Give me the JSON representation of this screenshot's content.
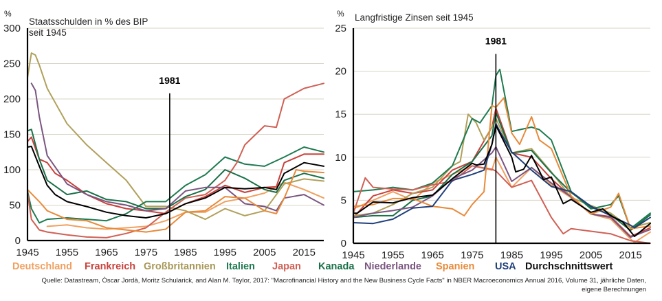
{
  "chart_data": [
    {
      "type": "line",
      "unit_label": "%",
      "title": "Staatsschulden in % des BIP",
      "subtitle": "seit 1945",
      "xlim": [
        1945,
        2020
      ],
      "ylim": [
        0,
        300
      ],
      "x_ticks": [
        "1945",
        "1955",
        "1965",
        "1975",
        "1985",
        "1995",
        "2005",
        "2015"
      ],
      "y_ticks": [
        "0",
        "50",
        "100",
        "150",
        "200",
        "250",
        "300"
      ],
      "grid": true,
      "annotation": {
        "label": "1981",
        "x": 1981,
        "y_top": 208
      },
      "series": [
        {
          "name": "Deutschland",
          "color": "#f0a060",
          "x": [
            1950,
            1955,
            1960,
            1965,
            1970,
            1975,
            1980,
            1985,
            1990,
            1995,
            2000,
            2005,
            2010,
            2015,
            2020
          ],
          "values": [
            20,
            22,
            18,
            16,
            18,
            20,
            28,
            40,
            40,
            55,
            60,
            67,
            82,
            72,
            60
          ]
        },
        {
          "name": "Frankreich",
          "color": "#c8423c",
          "x": [
            1945,
            1946,
            1948,
            1950,
            1952,
            1955,
            1960,
            1965,
            1970,
            1975,
            1980,
            1985,
            1990,
            1995,
            2000,
            2005,
            2008,
            2010,
            2015,
            2020
          ],
          "values": [
            140,
            146,
            115,
            110,
            95,
            85,
            65,
            52,
            45,
            42,
            38,
            52,
            62,
            78,
            68,
            75,
            76,
            110,
            122,
            122
          ]
        },
        {
          "name": "Großbritannien",
          "color": "#b0a05a",
          "x": [
            1945,
            1946,
            1947,
            1948,
            1950,
            1952,
            1955,
            1960,
            1965,
            1970,
            1975,
            1980,
            1985,
            1990,
            1995,
            2000,
            2005,
            2010,
            2015,
            2020
          ],
          "values": [
            230,
            265,
            262,
            248,
            215,
            195,
            165,
            135,
            110,
            85,
            48,
            48,
            42,
            30,
            45,
            35,
            42,
            80,
            87,
            84
          ]
        },
        {
          "name": "Italien",
          "color": "#1e7a50",
          "x": [
            1945,
            1946,
            1948,
            1950,
            1955,
            1960,
            1965,
            1970,
            1975,
            1980,
            1985,
            1990,
            1995,
            2000,
            2005,
            2010,
            2015,
            2020
          ],
          "values": [
            70,
            45,
            25,
            30,
            32,
            30,
            28,
            38,
            55,
            55,
            78,
            93,
            118,
            108,
            105,
            118,
            132,
            125
          ]
        },
        {
          "name": "Japan",
          "color": "#d06055",
          "x": [
            1945,
            1946,
            1948,
            1950,
            1955,
            1960,
            1965,
            1970,
            1975,
            1980,
            1985,
            1990,
            1995,
            1998,
            2000,
            2005,
            2008,
            2010,
            2015,
            2020
          ],
          "values": [
            68,
            30,
            15,
            12,
            8,
            5,
            4,
            10,
            18,
            40,
            60,
            65,
            85,
            110,
            135,
            162,
            160,
            200,
            215,
            222
          ]
        },
        {
          "name": "Kanada",
          "color": "#1a7048",
          "x": [
            1945,
            1946,
            1948,
            1950,
            1955,
            1960,
            1965,
            1970,
            1975,
            1980,
            1985,
            1990,
            1995,
            2000,
            2005,
            2008,
            2010,
            2015,
            2020
          ],
          "values": [
            155,
            157,
            115,
            85,
            65,
            70,
            58,
            55,
            45,
            45,
            62,
            72,
            100,
            88,
            72,
            68,
            85,
            95,
            88
          ]
        },
        {
          "name": "Niederlande",
          "color": "#7a5580",
          "x": [
            1946,
            1947,
            1948,
            1950,
            1955,
            1960,
            1965,
            1970,
            1975,
            1980,
            1985,
            1990,
            1995,
            2000,
            2005,
            2008,
            2010,
            2015,
            2020
          ],
          "values": [
            222,
            212,
            175,
            120,
            80,
            65,
            55,
            50,
            42,
            45,
            70,
            75,
            75,
            52,
            48,
            42,
            60,
            65,
            50
          ]
        },
        {
          "name": "Spanien",
          "color": "#e88a3a",
          "x": [
            1945,
            1948,
            1950,
            1955,
            1960,
            1965,
            1970,
            1975,
            1980,
            1985,
            1990,
            1995,
            2000,
            2005,
            2008,
            2010,
            2013,
            2015,
            2020
          ],
          "values": [
            72,
            55,
            42,
            30,
            28,
            18,
            15,
            12,
            16,
            40,
            42,
            62,
            60,
            42,
            38,
            60,
            100,
            98,
            96
          ]
        },
        {
          "name": "USA",
          "color": "#1f3f7a",
          "x": [],
          "values": []
        },
        {
          "name": "Durchschnittswert",
          "color": "#000000",
          "x": [
            1945,
            1946,
            1948,
            1950,
            1952,
            1955,
            1960,
            1965,
            1970,
            1975,
            1980,
            1985,
            1990,
            1995,
            2000,
            2005,
            2008,
            2010,
            2015,
            2020
          ],
          "values": [
            132,
            133,
            105,
            78,
            65,
            55,
            48,
            40,
            35,
            32,
            38,
            52,
            60,
            75,
            73,
            75,
            72,
            95,
            110,
            105
          ]
        }
      ]
    },
    {
      "type": "line",
      "unit_label": "%",
      "title": "Langfristige Zinsen seit 1945",
      "xlim": [
        1945,
        2020
      ],
      "ylim": [
        0,
        25
      ],
      "x_ticks": [
        "1945",
        "1955",
        "1965",
        "1975",
        "1985",
        "1995",
        "2005",
        "2015"
      ],
      "y_ticks": [
        "0",
        "5",
        "10",
        "15",
        "20",
        "25"
      ],
      "grid": true,
      "annotation": {
        "label": "1981",
        "x": 1981,
        "y_top": 22
      },
      "series": [
        {
          "name": "Deutschland",
          "color": "#f0a060",
          "x": [
            1945,
            1950,
            1955,
            1960,
            1965,
            1970,
            1975,
            1980,
            1981,
            1985,
            1990,
            1995,
            2000,
            2005,
            2010,
            2015,
            2016,
            2020
          ],
          "values": [
            4,
            5,
            6,
            5,
            7,
            8,
            9,
            8.5,
            10,
            6.5,
            8.8,
            6.8,
            5.3,
            3.4,
            2.8,
            0.5,
            0.1,
            1.3
          ]
        },
        {
          "name": "Frankreich",
          "color": "#c8423c",
          "x": [
            1945,
            1950,
            1955,
            1960,
            1965,
            1970,
            1975,
            1980,
            1981,
            1985,
            1990,
            1995,
            2000,
            2005,
            2010,
            2015,
            2020
          ],
          "values": [
            3,
            5.5,
            6.2,
            5.8,
            6.2,
            8.5,
            9.5,
            13.5,
            15.7,
            10.5,
            10,
            7.5,
            5.4,
            3.4,
            3.1,
            0.8,
            1.8
          ]
        },
        {
          "name": "Großbritannien",
          "color": "#b0a05a",
          "x": [
            1945,
            1950,
            1955,
            1960,
            1965,
            1970,
            1972,
            1974,
            1976,
            1978,
            1980,
            1981,
            1985,
            1990,
            1995,
            2000,
            2005,
            2010,
            2015,
            2020
          ],
          "values": [
            3.2,
            3.5,
            4.5,
            5.8,
            6.5,
            9,
            9.5,
            15,
            14,
            12,
            13.5,
            14.5,
            10.5,
            11,
            8.3,
            5.3,
            4.4,
            3.5,
            1.8,
            2.4
          ]
        },
        {
          "name": "Italien",
          "color": "#1e7a50",
          "x": [
            1945,
            1950,
            1955,
            1960,
            1965,
            1970,
            1975,
            1977,
            1980,
            1981,
            1982,
            1985,
            1990,
            1992,
            1995,
            2000,
            2005,
            2010,
            2012,
            2015,
            2020
          ],
          "values": [
            6,
            6.2,
            6.5,
            6.2,
            7,
            9,
            14.5,
            14,
            16,
            19.5,
            20.2,
            13,
            13.5,
            13.2,
            12,
            6,
            4,
            4.5,
            5.5,
            1.7,
            3.5
          ]
        },
        {
          "name": "Japan",
          "color": "#d06055",
          "x": [
            1945,
            1948,
            1950,
            1955,
            1960,
            1965,
            1970,
            1975,
            1980,
            1981,
            1985,
            1990,
            1995,
            1998,
            2000,
            2005,
            2010,
            2015,
            2020
          ],
          "values": [
            3.5,
            7.6,
            6.5,
            6.3,
            6.2,
            6.8,
            7.2,
            9,
            8.6,
            8.4,
            6.5,
            7.3,
            3,
            1.1,
            1.7,
            1.4,
            1.1,
            0.3,
            0
          ]
        },
        {
          "name": "Kanada",
          "color": "#1a7048",
          "x": [
            1945,
            1950,
            1955,
            1960,
            1965,
            1970,
            1975,
            1980,
            1981,
            1985,
            1990,
            1995,
            2000,
            2005,
            2010,
            2015,
            2020
          ],
          "values": [
            3,
            3.2,
            3.2,
            5,
            5.5,
            8,
            9.5,
            12.5,
            15.2,
            10.5,
            10.8,
            8.2,
            5.9,
            4.2,
            3.3,
            1.5,
            3.3
          ]
        },
        {
          "name": "Niederlande",
          "color": "#7a5580",
          "x": [
            1945,
            1950,
            1955,
            1960,
            1965,
            1970,
            1975,
            1980,
            1981,
            1985,
            1990,
            1995,
            2000,
            2005,
            2010,
            2015,
            2020
          ],
          "values": [
            3,
            3.5,
            3.8,
            4.2,
            5.5,
            7.5,
            8.5,
            10.5,
            11.2,
            7.2,
            8.8,
            7,
            5.4,
            3.4,
            3,
            0.7,
            1.6
          ]
        },
        {
          "name": "Spanien",
          "color": "#e88a3a",
          "x": [
            1945,
            1950,
            1955,
            1960,
            1965,
            1970,
            1973,
            1975,
            1978,
            1980,
            1981,
            1983,
            1985,
            1987,
            1990,
            1992,
            1995,
            2000,
            2005,
            2010,
            2012,
            2015,
            2020
          ],
          "values": [
            4.3,
            4.5,
            5.2,
            5.2,
            4.3,
            4,
            3.2,
            4.5,
            6,
            16,
            15.8,
            16.9,
            12.8,
            11.5,
            14.7,
            12,
            11,
            5.5,
            3.4,
            4.2,
            5.8,
            1.7,
            2
          ]
        },
        {
          "name": "USA",
          "color": "#1f3f7a",
          "x": [
            1945,
            1950,
            1955,
            1960,
            1965,
            1970,
            1975,
            1978,
            1980,
            1981,
            1982,
            1985,
            1990,
            1995,
            2000,
            2005,
            2010,
            2015,
            2016,
            2020
          ],
          "values": [
            2.4,
            2.3,
            2.8,
            4.1,
            4.3,
            7.3,
            8,
            8.5,
            11.5,
            13.9,
            13,
            10.6,
            8.5,
            6.6,
            6,
            4.3,
            3.2,
            2.1,
            1.8,
            3
          ]
        },
        {
          "name": "Durchschnittswert",
          "color": "#000000",
          "x": [
            1945,
            1946,
            1950,
            1955,
            1960,
            1965,
            1970,
            1975,
            1976,
            1978,
            1980,
            1981,
            1985,
            1986,
            1988,
            1990,
            1992,
            1993,
            1995,
            1998,
            2000,
            2002,
            2005,
            2008,
            2010,
            2013,
            2016,
            2020
          ],
          "values": [
            3.5,
            3.5,
            4.8,
            4.7,
            5.3,
            5.6,
            7.5,
            9.3,
            9.1,
            9.2,
            11.5,
            13.7,
            10,
            8.3,
            8.6,
            10.2,
            8.4,
            7.4,
            7.7,
            4.6,
            5.1,
            4.5,
            3.6,
            4,
            3.2,
            2.5,
            0.8,
            2.3
          ]
        }
      ]
    }
  ],
  "legend": [
    {
      "label": "Deutschland",
      "color": "#f0a060"
    },
    {
      "label": "Frankreich",
      "color": "#c8423c"
    },
    {
      "label": "Großbritannien",
      "color": "#a89858"
    },
    {
      "label": "Italien",
      "color": "#1e7a50"
    },
    {
      "label": "Japan",
      "color": "#d06055"
    },
    {
      "label": "Kanada",
      "color": "#1a7048"
    },
    {
      "label": "Niederlande",
      "color": "#7a5580"
    },
    {
      "label": "Spanien",
      "color": "#e88a3a"
    },
    {
      "label": "USA",
      "color": "#1f3f7a"
    },
    {
      "label": "Durchschnittswert",
      "color": "#111111"
    }
  ],
  "source": {
    "line1": "Quelle: Datastream, Òscar Jordà, Moritz Schularick, and Alan M. Taylor, 2017: \"Macrofinancial History and the New Business Cycle Facts\" in NBER Macroeconomics Annual 2016, Volume 31, jährliche Daten,",
    "line2": "eigene Berechnungen"
  }
}
